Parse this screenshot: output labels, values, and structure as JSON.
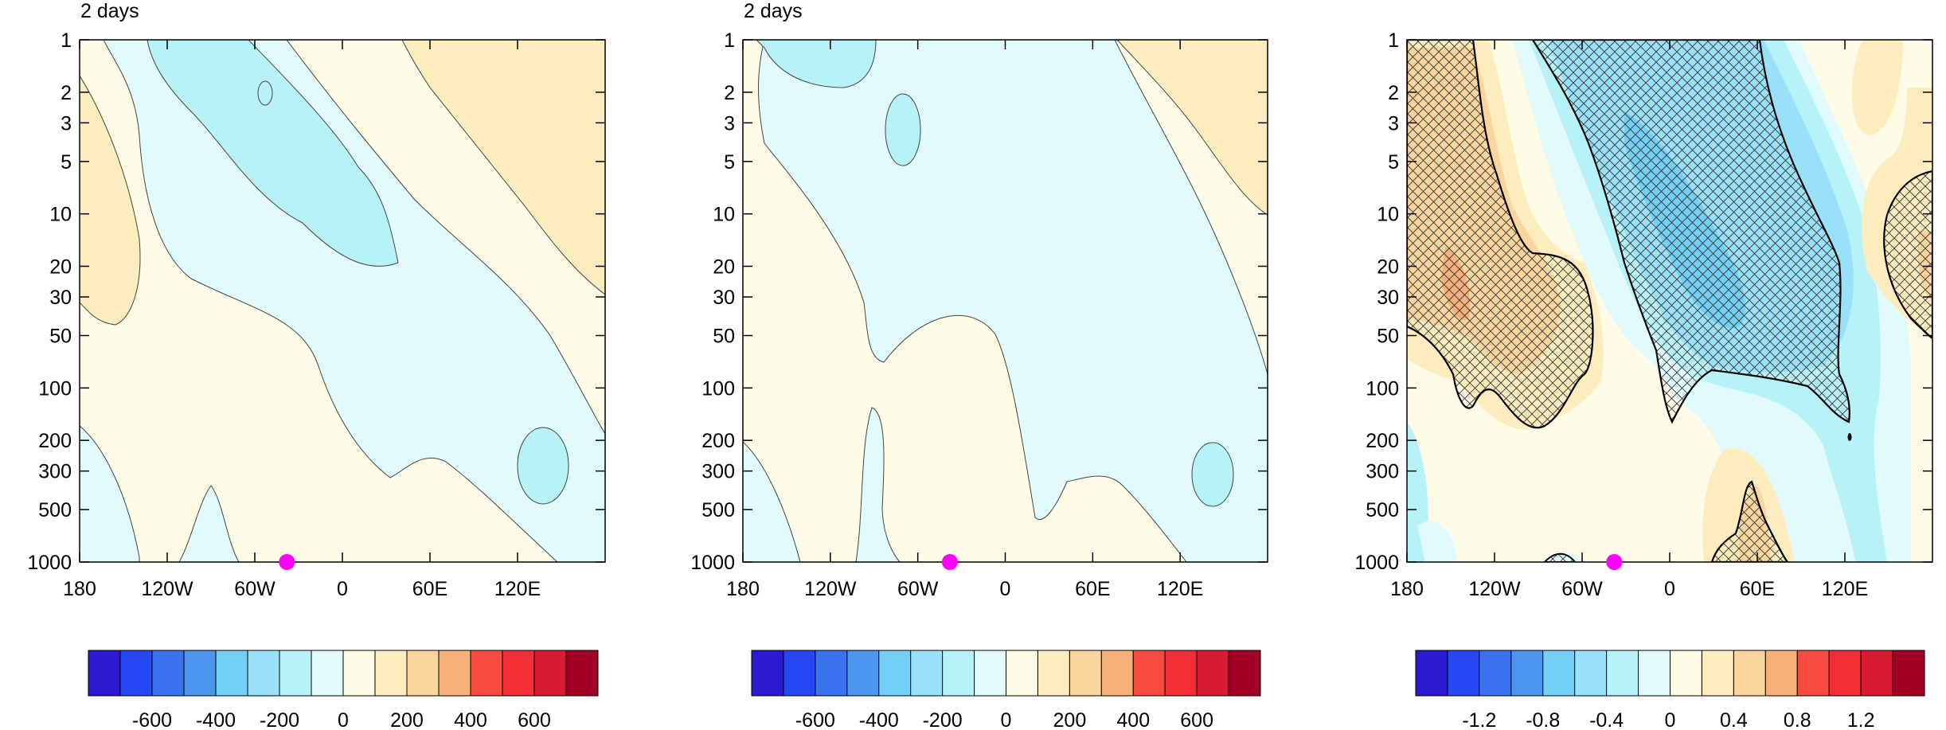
{
  "panels": [
    {
      "title": "2 days",
      "colorbar_labels": [
        "-600",
        "-400",
        "-200",
        "0",
        "200",
        "400",
        "600"
      ],
      "hatched": false
    },
    {
      "title": "2 days",
      "colorbar_labels": [
        "-600",
        "-400",
        "-200",
        "0",
        "200",
        "400",
        "600"
      ],
      "hatched": false
    },
    {
      "title": "",
      "colorbar_labels": [
        "-1.2",
        "-0.8",
        "-0.4",
        "0",
        "0.4",
        "0.8",
        "1.2"
      ],
      "hatched": true
    }
  ],
  "colors": {
    "palette": [
      "#2b1acf",
      "#2547f5",
      "#3a72f0",
      "#4c96ef",
      "#73cff6",
      "#98e1f8",
      "#b8f2f9",
      "#e1fbfd",
      "#fefbe6",
      "#fdecbd",
      "#fad59d",
      "#f7b07a",
      "#f74b40",
      "#f42e37",
      "#d81a33",
      "#a20024"
    ],
    "marker": "#ff00ff"
  },
  "chart_data": [
    {
      "type": "heatmap",
      "title": "2 days",
      "x_tick_labels": [
        "180",
        "120W",
        "60W",
        "0",
        "60E",
        "120E"
      ],
      "x_ticks": [
        -180,
        -120,
        -60,
        0,
        60,
        120
      ],
      "xlim": [
        -180,
        180
      ],
      "y_tick_labels": [
        "1",
        "2",
        "3",
        "5",
        "10",
        "20",
        "30",
        "50",
        "100",
        "200",
        "300",
        "500",
        "1000"
      ],
      "y_ticks": [
        1,
        2,
        3,
        5,
        10,
        20,
        30,
        50,
        100,
        200,
        300,
        500,
        1000
      ],
      "ylim": [
        1000,
        1
      ],
      "y_scale": "log",
      "colorbar_levels": [
        -700,
        -600,
        -500,
        -400,
        -300,
        -200,
        -100,
        0,
        100,
        200,
        300,
        400,
        500,
        600,
        700
      ],
      "marker": {
        "x": -38,
        "y": 1000
      },
      "ranges": {
        "min": -200,
        "max": 200
      }
    },
    {
      "type": "heatmap",
      "title": "2 days",
      "x_tick_labels": [
        "180",
        "120W",
        "60W",
        "0",
        "60E",
        "120E"
      ],
      "x_ticks": [
        -180,
        -120,
        -60,
        0,
        60,
        120
      ],
      "xlim": [
        -180,
        180
      ],
      "y_tick_labels": [
        "1",
        "2",
        "3",
        "5",
        "10",
        "20",
        "30",
        "50",
        "100",
        "200",
        "300",
        "500",
        "1000"
      ],
      "y_ticks": [
        1,
        2,
        3,
        5,
        10,
        20,
        30,
        50,
        100,
        200,
        300,
        500,
        1000
      ],
      "ylim": [
        1000,
        1
      ],
      "y_scale": "log",
      "colorbar_levels": [
        -700,
        -600,
        -500,
        -400,
        -300,
        -200,
        -100,
        0,
        100,
        200,
        300,
        400,
        500,
        600,
        700
      ],
      "marker": {
        "x": -38,
        "y": 1000
      },
      "ranges": {
        "min": -200,
        "max": 200
      }
    },
    {
      "type": "heatmap",
      "title": "",
      "x_tick_labels": [
        "180",
        "120W",
        "60W",
        "0",
        "60E",
        "120E"
      ],
      "x_ticks": [
        -180,
        -120,
        -60,
        0,
        60,
        120
      ],
      "xlim": [
        -180,
        180
      ],
      "y_tick_labels": [
        "1",
        "2",
        "3",
        "5",
        "10",
        "20",
        "30",
        "50",
        "100",
        "200",
        "300",
        "500",
        "1000"
      ],
      "y_ticks": [
        1,
        2,
        3,
        5,
        10,
        20,
        30,
        50,
        100,
        200,
        300,
        500,
        1000
      ],
      "ylim": [
        1000,
        1
      ],
      "y_scale": "log",
      "colorbar_levels": [
        -1.4,
        -1.2,
        -1.0,
        -0.8,
        -0.6,
        -0.4,
        -0.2,
        0,
        0.2,
        0.4,
        0.6,
        0.8,
        1.0,
        1.2,
        1.4
      ],
      "marker": {
        "x": -38,
        "y": 1000
      },
      "hatching": "significant regions (cross-hatched)",
      "ranges": {
        "min": -0.6,
        "max": 0.6
      }
    }
  ]
}
